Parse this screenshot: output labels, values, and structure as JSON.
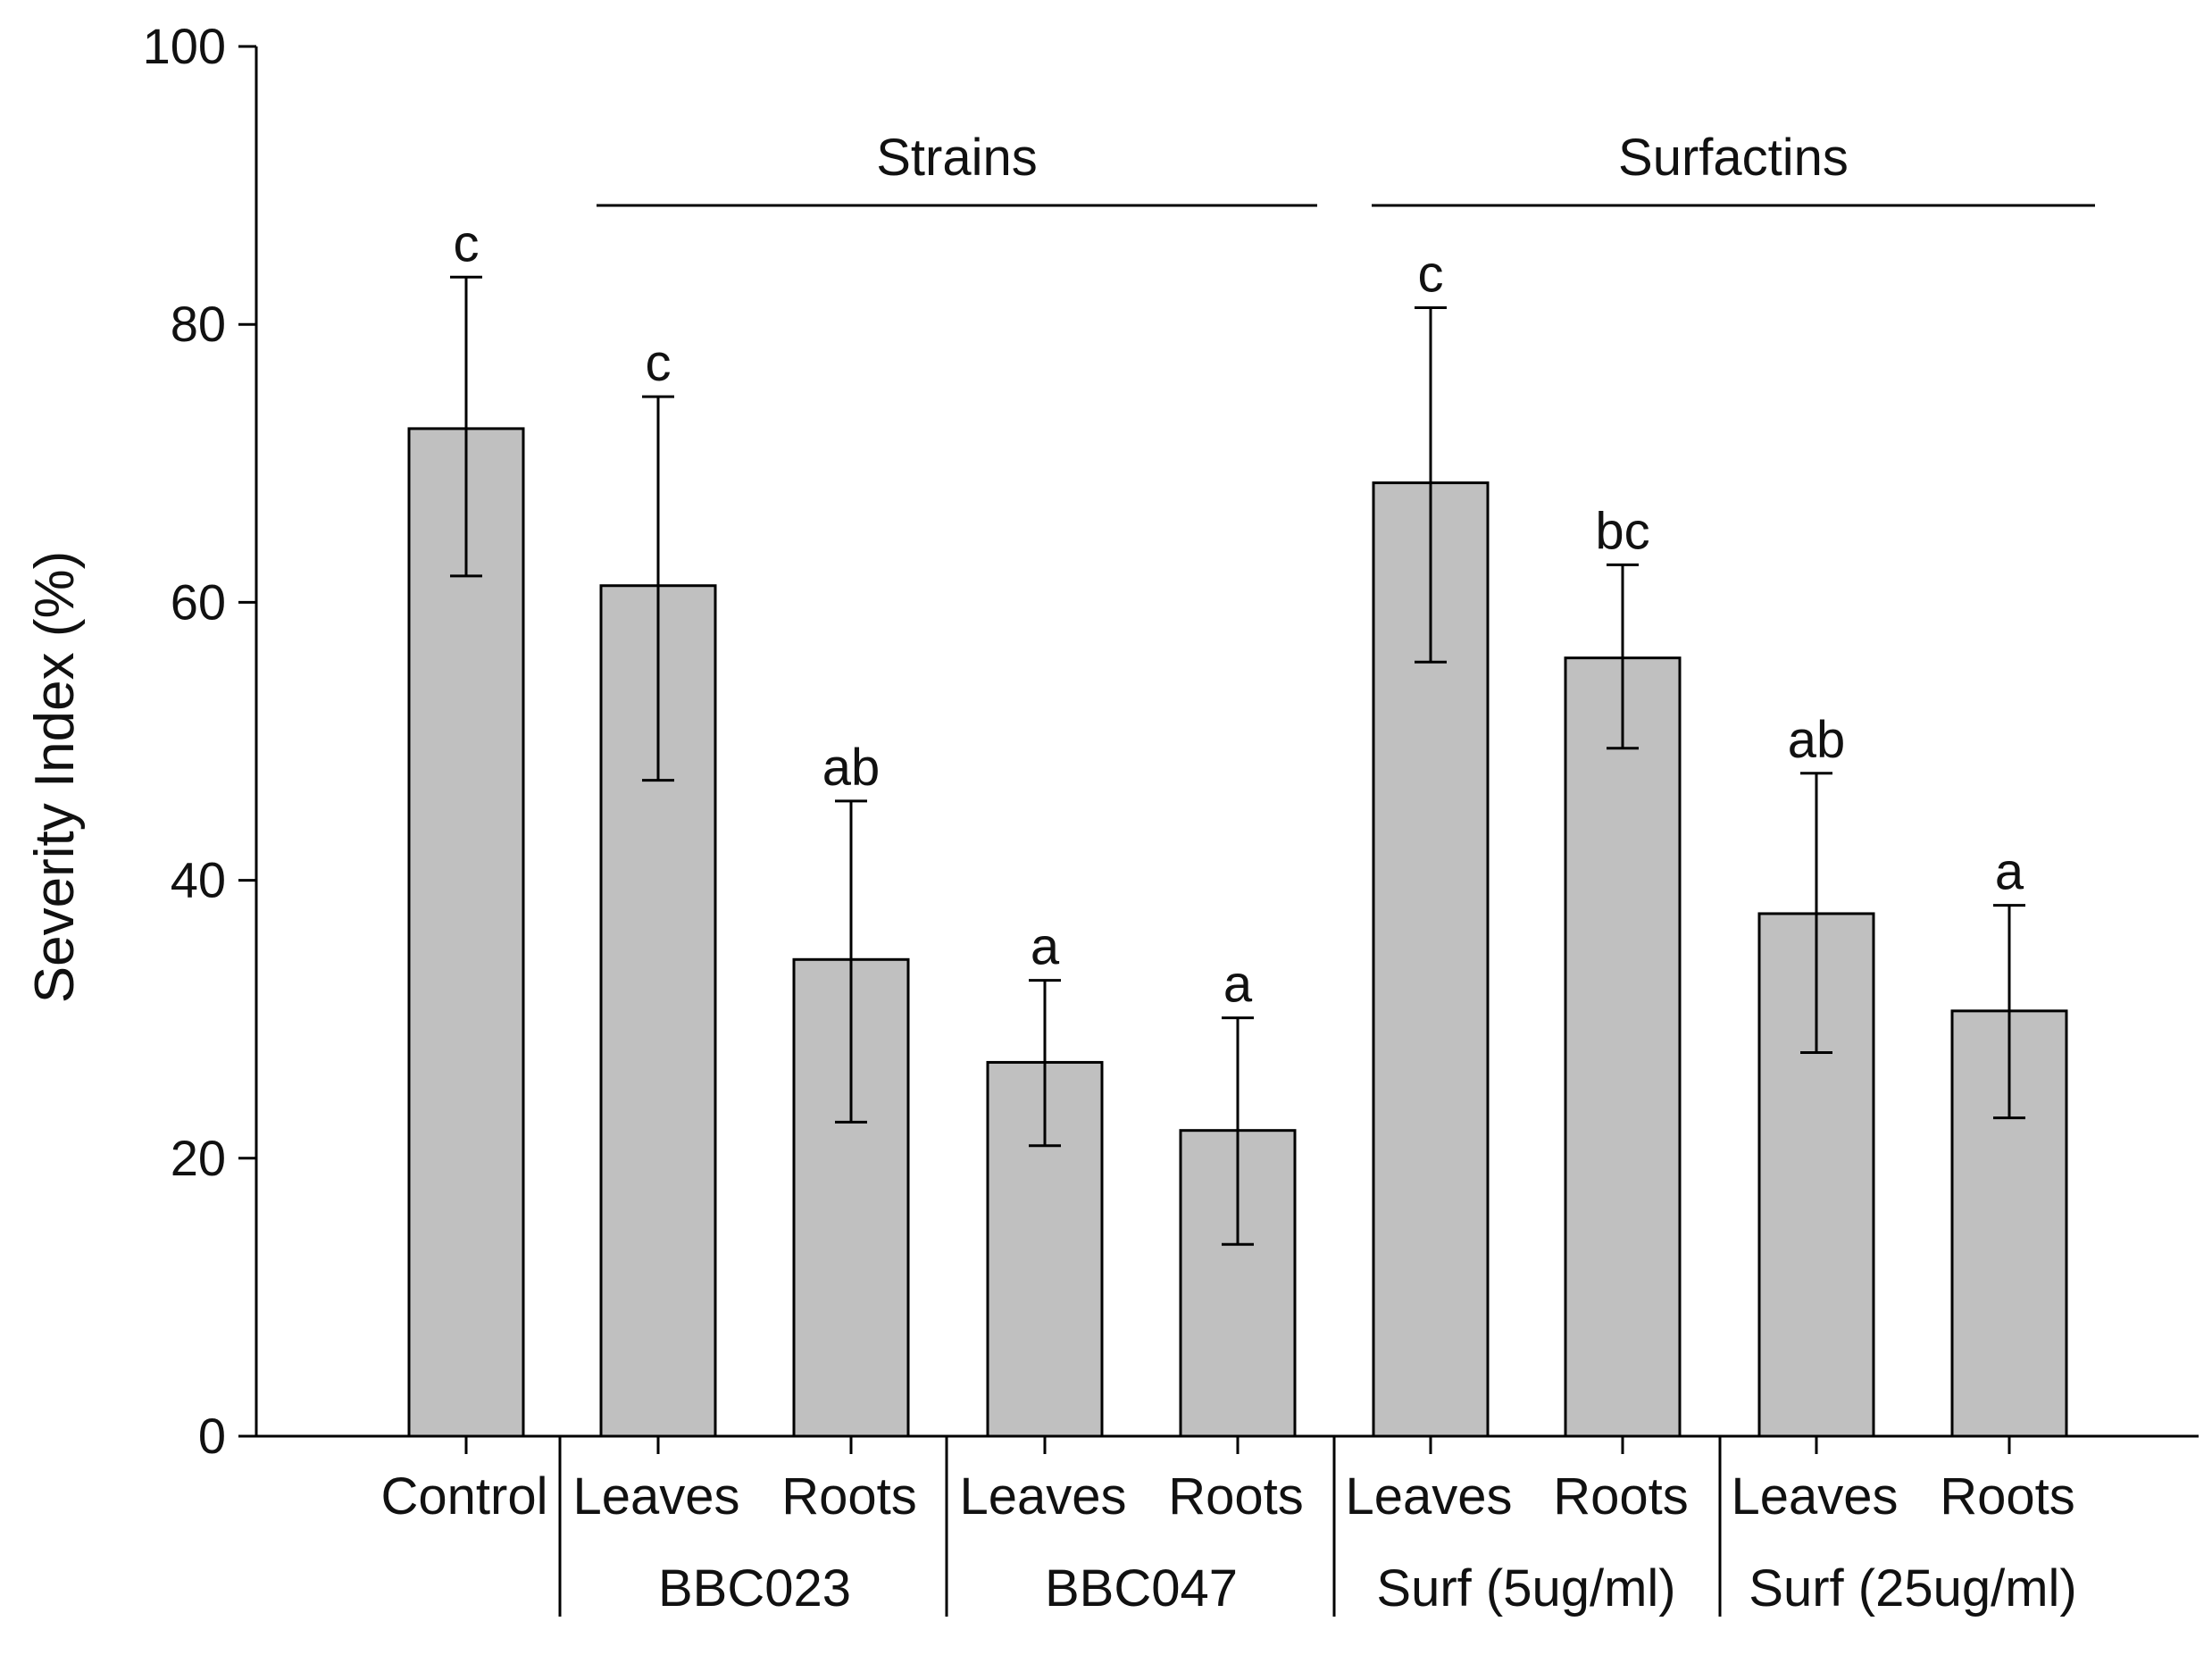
{
  "chart_data": {
    "type": "bar",
    "ylabel": "Severity Index (%)",
    "ylim": [
      0,
      100
    ],
    "yticks": [
      0,
      20,
      40,
      60,
      80,
      100
    ],
    "grid": false,
    "bar_color": "#c0c0c0",
    "bar_edge_color": "#000000",
    "categories": [
      "Control",
      "Leaves",
      "Roots",
      "Leaves",
      "Roots",
      "Leaves",
      "Roots",
      "Leaves",
      "Roots"
    ],
    "values": [
      72.5,
      61.2,
      34.3,
      26.9,
      22.0,
      68.6,
      56.0,
      37.6,
      30.6
    ],
    "error_upper": [
      83.4,
      74.8,
      45.7,
      32.8,
      30.1,
      81.2,
      62.7,
      47.7,
      38.2
    ],
    "error_lower": [
      61.9,
      47.2,
      22.6,
      20.9,
      13.8,
      55.7,
      49.5,
      27.6,
      22.9
    ],
    "significance": [
      "c",
      "c",
      "ab",
      "a",
      "a",
      "c",
      "bc",
      "ab",
      "a"
    ],
    "subgroups": [
      {
        "label": "BBC023",
        "from": 1,
        "to": 2
      },
      {
        "label": "BBC047",
        "from": 3,
        "to": 4
      },
      {
        "label": "Surf (5ug/ml)",
        "from": 5,
        "to": 6
      },
      {
        "label": "Surf (25ug/ml)",
        "from": 7,
        "to": 8
      }
    ],
    "groups": [
      {
        "label": "Strains",
        "from": 1,
        "to": 4
      },
      {
        "label": "Surfactins",
        "from": 5,
        "to": 8
      }
    ]
  }
}
